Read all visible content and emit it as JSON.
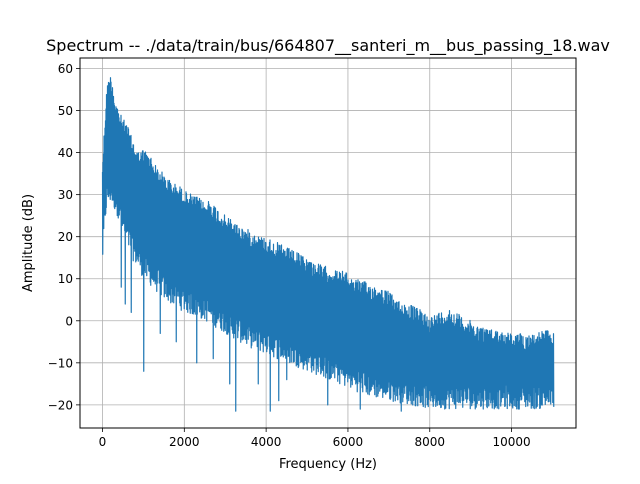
{
  "chart_data": {
    "type": "line",
    "title": "Spectrum -- ./data/train/bus/664807__santeri_m__bus_passing_18.wav",
    "xlabel": "Frequency (Hz)",
    "ylabel": "Amplitude (dB)",
    "xlim": [
      -550,
      11575
    ],
    "ylim": [
      -25.5,
      62.5
    ],
    "xticks": [
      0,
      2000,
      4000,
      6000,
      8000,
      10000
    ],
    "xtick_labels": [
      "0",
      "2000",
      "4000",
      "6000",
      "8000",
      "10000"
    ],
    "yticks": [
      -20,
      -10,
      0,
      10,
      20,
      30,
      40,
      50,
      60
    ],
    "ytick_labels": [
      "−20",
      "−10",
      "0",
      "10",
      "20",
      "30",
      "40",
      "50",
      "60"
    ],
    "grid": true,
    "line_color": "#1f77b4",
    "series": [
      {
        "upper_envelope": {
          "x": [
            0,
            50,
            100,
            150,
            200,
            250,
            300,
            350,
            400,
            500,
            600,
            700,
            800,
            900,
            1000,
            1100,
            1200,
            1300,
            1400,
            1500,
            1700,
            1900,
            2000,
            2200,
            2400,
            2500,
            2600,
            2800,
            3000,
            3200,
            3300,
            3500,
            3700,
            3900,
            4000,
            4200,
            4400,
            4600,
            4800,
            5000,
            5200,
            5400,
            5500,
            5700,
            5900,
            6000,
            6200,
            6500,
            6800,
            7000,
            7200,
            7500,
            7700,
            7900,
            8000,
            8200,
            8500,
            8800,
            9000,
            9200,
            9500,
            9700,
            10000,
            10300,
            10600,
            10800,
            11025
          ],
          "y": [
            38,
            47,
            55,
            58,
            58.5,
            57,
            53,
            52,
            50,
            48,
            47,
            44,
            42,
            40,
            41,
            40,
            39,
            37,
            36,
            35,
            33,
            32,
            31,
            30,
            29,
            28,
            29,
            27,
            25,
            24,
            23,
            22,
            21,
            20,
            20,
            19,
            18,
            17,
            16,
            15,
            14,
            13,
            13,
            12,
            12,
            11,
            10,
            9,
            8,
            7,
            5,
            4,
            3,
            2,
            1,
            2,
            3,
            1,
            0,
            -1,
            -2,
            -2,
            -3,
            -3,
            -3,
            -2,
            -3
          ]
        },
        "lower_envelope": {
          "x": [
            0,
            50,
            100,
            200,
            300,
            400,
            500,
            700,
            1000,
            1500,
            2000,
            2500,
            3000,
            3500,
            4000,
            4500,
            5000,
            5500,
            6000,
            6500,
            7000,
            7500,
            8000,
            8500,
            9000,
            10000,
            11025
          ],
          "y": [
            14,
            22,
            27,
            28,
            26,
            24,
            20,
            15,
            10,
            5,
            2,
            0,
            -3,
            -6,
            -8,
            -10,
            -12,
            -14,
            -16,
            -18,
            -19,
            -20,
            -21,
            -21,
            -21,
            -21,
            -21
          ]
        },
        "dips": {
          "x": [
            450,
            550,
            700,
            1000,
            1400,
            1800,
            2300,
            2700,
            3100,
            3250,
            3800,
            4100,
            4300,
            4500,
            5500,
            6300,
            7300
          ],
          "y": [
            8,
            4,
            2,
            -12,
            -3,
            -5,
            -10,
            -9,
            -15,
            -21.5,
            -15,
            -21.5,
            -19,
            -14,
            -20,
            -21,
            -21.5
          ]
        }
      }
    ]
  }
}
